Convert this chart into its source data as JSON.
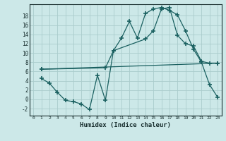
{
  "xlabel": "Humidex (Indice chaleur)",
  "bg_color": "#cce8e8",
  "grid_color": "#aacccc",
  "line_color": "#1a6060",
  "xlim": [
    -0.5,
    23.5
  ],
  "ylim": [
    -3.5,
    20.5
  ],
  "xticks": [
    0,
    1,
    2,
    3,
    4,
    5,
    6,
    7,
    8,
    9,
    10,
    11,
    12,
    13,
    14,
    15,
    16,
    17,
    18,
    19,
    20,
    21,
    22,
    23
  ],
  "yticks": [
    -2,
    0,
    2,
    4,
    6,
    8,
    10,
    12,
    14,
    16,
    18
  ],
  "line1_x": [
    1,
    2,
    3,
    4,
    5,
    6,
    7,
    8,
    9,
    10,
    11,
    12,
    13,
    14,
    15,
    16,
    17,
    18,
    19,
    20,
    21,
    22,
    23
  ],
  "line1_y": [
    4.5,
    3.5,
    1.5,
    -0.2,
    -0.5,
    -1.0,
    -2.2,
    5.2,
    -0.2,
    10.5,
    13.2,
    16.8,
    13.2,
    18.5,
    19.5,
    19.8,
    19.2,
    18.2,
    14.8,
    10.8,
    8.0,
    3.2,
    0.5
  ],
  "line2_x": [
    1,
    23
  ],
  "line2_y": [
    6.5,
    7.8
  ],
  "line3_x": [
    1,
    9,
    10,
    14,
    15,
    16,
    17,
    18,
    19,
    20,
    21,
    22,
    23
  ],
  "line3_y": [
    6.5,
    6.8,
    10.5,
    13.0,
    14.8,
    19.5,
    19.8,
    13.8,
    12.0,
    11.5,
    8.2,
    7.8,
    7.8
  ]
}
